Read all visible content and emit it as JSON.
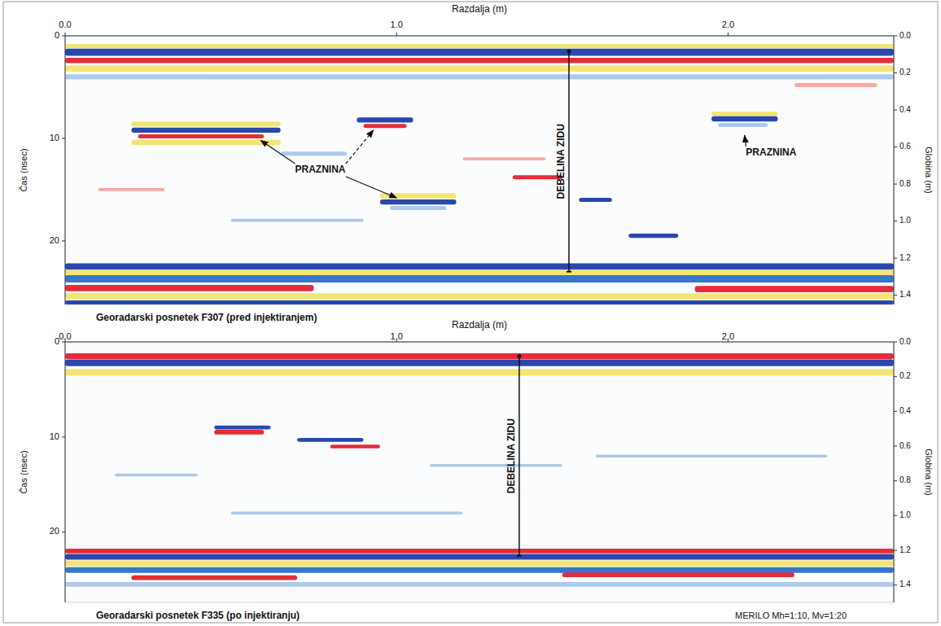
{
  "chart_data": [
    {
      "type": "radargram",
      "title": "Georadarski posnetek F307 (pred injektiranjem)",
      "x_label": "Razdalja (m)",
      "y_label": "Čas (nsec)",
      "y2_label": "Globina (m)",
      "xlim": [
        0,
        2.5
      ],
      "xticks": [
        {
          "value": 0,
          "label": "0.0"
        },
        {
          "value": 1,
          "label": "1.0"
        },
        {
          "value": 2,
          "label": "2.0"
        }
      ],
      "ylim": [
        0,
        26.2
      ],
      "yticks": [
        0,
        10,
        20
      ],
      "y2lim": [
        0,
        1.45
      ],
      "y2ticks": [
        {
          "value": 0,
          "label": "0.0"
        },
        {
          "value": 0.2,
          "label": "0.2"
        },
        {
          "value": 0.4,
          "label": "0.4"
        },
        {
          "value": 0.6,
          "label": "0.6"
        },
        {
          "value": 0.8,
          "label": "0.8"
        },
        {
          "value": 1,
          "label": "1.0"
        },
        {
          "value": 1.2,
          "label": "1.2"
        },
        {
          "value": 1.4,
          "label": "1.4"
        }
      ],
      "reflectors": [
        {
          "x0": 0,
          "x1": 2.5,
          "t": 1.0,
          "dt": 0.4,
          "color": "#f3e36a"
        },
        {
          "x0": 0,
          "x1": 2.5,
          "t": 1.6,
          "dt": 0.7,
          "color": "#1e3ea8"
        },
        {
          "x0": 0,
          "x1": 2.5,
          "t": 2.4,
          "dt": 0.5,
          "color": "#e3222b"
        },
        {
          "x0": 0,
          "x1": 2.5,
          "t": 3.2,
          "dt": 0.6,
          "color": "#f3e36a"
        },
        {
          "x0": 0,
          "x1": 2.5,
          "t": 4.0,
          "dt": 0.5,
          "color": "#a9c6ea"
        },
        {
          "x0": 0.2,
          "x1": 0.65,
          "t": 8.6,
          "dt": 0.5,
          "color": "#f3e36a"
        },
        {
          "x0": 0.2,
          "x1": 0.65,
          "t": 9.2,
          "dt": 0.5,
          "color": "#1e3ea8"
        },
        {
          "x0": 0.22,
          "x1": 0.6,
          "t": 9.8,
          "dt": 0.4,
          "color": "#e3222b"
        },
        {
          "x0": 0.2,
          "x1": 0.65,
          "t": 10.4,
          "dt": 0.5,
          "color": "#f3e36a"
        },
        {
          "x0": 0.88,
          "x1": 1.05,
          "t": 8.2,
          "dt": 0.5,
          "color": "#1e3ea8"
        },
        {
          "x0": 0.9,
          "x1": 1.03,
          "t": 8.8,
          "dt": 0.4,
          "color": "#e3222b"
        },
        {
          "x0": 0.95,
          "x1": 1.18,
          "t": 15.6,
          "dt": 0.5,
          "color": "#f3e36a"
        },
        {
          "x0": 0.95,
          "x1": 1.18,
          "t": 16.2,
          "dt": 0.5,
          "color": "#1e3ea8"
        },
        {
          "x0": 0.98,
          "x1": 1.15,
          "t": 16.8,
          "dt": 0.4,
          "color": "#a9c6ea"
        },
        {
          "x0": 1.95,
          "x1": 2.15,
          "t": 7.6,
          "dt": 0.4,
          "color": "#f3e36a"
        },
        {
          "x0": 1.95,
          "x1": 2.15,
          "t": 8.1,
          "dt": 0.5,
          "color": "#1e3ea8"
        },
        {
          "x0": 1.97,
          "x1": 2.12,
          "t": 8.7,
          "dt": 0.4,
          "color": "#a9c6ea"
        },
        {
          "x0": 0.65,
          "x1": 0.85,
          "t": 11.5,
          "dt": 0.4,
          "color": "#a9c6ea"
        },
        {
          "x0": 1.35,
          "x1": 1.5,
          "t": 13.8,
          "dt": 0.4,
          "color": "#e3222b"
        },
        {
          "x0": 1.7,
          "x1": 1.85,
          "t": 19.5,
          "dt": 0.4,
          "color": "#1e3ea8"
        },
        {
          "x0": 1.55,
          "x1": 1.65,
          "t": 16.0,
          "dt": 0.4,
          "color": "#1e3ea8"
        },
        {
          "x0": 0.1,
          "x1": 0.3,
          "t": 15.0,
          "dt": 0.3,
          "color": "#f4a6a0"
        },
        {
          "x0": 1.2,
          "x1": 1.45,
          "t": 12.0,
          "dt": 0.3,
          "color": "#f4a6a0"
        },
        {
          "x0": 2.2,
          "x1": 2.45,
          "t": 4.8,
          "dt": 0.4,
          "color": "#f4a6a0"
        },
        {
          "x0": 0.5,
          "x1": 0.9,
          "t": 18.0,
          "dt": 0.3,
          "color": "#a9c6ea"
        },
        {
          "x0": 0,
          "x1": 2.5,
          "t": 22.5,
          "dt": 0.6,
          "color": "#1e3ea8"
        },
        {
          "x0": 0,
          "x1": 2.5,
          "t": 23.1,
          "dt": 0.5,
          "color": "#f3e36a"
        },
        {
          "x0": 0,
          "x1": 2.5,
          "t": 23.7,
          "dt": 0.7,
          "color": "#2a6fc9"
        },
        {
          "x0": 0,
          "x1": 0.75,
          "t": 24.6,
          "dt": 0.6,
          "color": "#e3222b"
        },
        {
          "x0": 1.9,
          "x1": 2.5,
          "t": 24.7,
          "dt": 0.6,
          "color": "#e3222b"
        },
        {
          "x0": 0,
          "x1": 2.5,
          "t": 25.4,
          "dt": 0.6,
          "color": "#f3e36a"
        },
        {
          "x0": 0,
          "x1": 2.5,
          "t": 26.0,
          "dt": 0.4,
          "color": "#1e3ea8"
        }
      ],
      "thickness_line": {
        "text": "DEBELINA ZIDU",
        "x": 1.52,
        "t0": 1.5,
        "t1": 23.0
      },
      "annotations": [
        {
          "text": "PRAZNINA",
          "x": 0.77,
          "t": 13.1,
          "arrows": [
            {
              "x": 0.59,
              "t": 10.2
            },
            {
              "x": 1.0,
              "t": 15.8
            },
            {
              "x": 0.93,
              "t": 9.2
            }
          ]
        },
        {
          "text": "PRAZNINA",
          "x": 2.13,
          "t": 11.4,
          "arrows": [
            {
              "x": 2.05,
              "t": 9.7
            }
          ]
        }
      ]
    },
    {
      "type": "radargram",
      "title": "Georadarski posnetek F335 (po injektiranju)",
      "x_label": "Razdalja (m)",
      "y_label": "Čas (nsec)",
      "y2_label": "Globina (m)",
      "note": "MERILO Mh=1:10, Mv=1:20",
      "xlim": [
        0,
        2.5
      ],
      "xticks": [
        {
          "value": 0,
          "label": "0.0"
        },
        {
          "value": 1,
          "label": "1.0"
        },
        {
          "value": 2,
          "label": "2.0"
        }
      ],
      "ylim": [
        0,
        27.4
      ],
      "yticks": [
        0,
        10,
        20
      ],
      "y2lim": [
        0,
        1.5
      ],
      "y2ticks": [
        {
          "value": 0,
          "label": "0.0"
        },
        {
          "value": 0.2,
          "label": "0.2"
        },
        {
          "value": 0.4,
          "label": "0.4"
        },
        {
          "value": 0.6,
          "label": "0.6"
        },
        {
          "value": 0.8,
          "label": "0.8"
        },
        {
          "value": 1,
          "label": "1.0"
        },
        {
          "value": 1.2,
          "label": "1.2"
        },
        {
          "value": 1.4,
          "label": "1.4"
        }
      ],
      "reflectors": [
        {
          "x0": 0,
          "x1": 2.5,
          "t": 1.5,
          "dt": 0.6,
          "color": "#e3222b"
        },
        {
          "x0": 0,
          "x1": 2.5,
          "t": 2.2,
          "dt": 0.7,
          "color": "#1e3ea8"
        },
        {
          "x0": 0,
          "x1": 2.5,
          "t": 3.2,
          "dt": 0.7,
          "color": "#f3e36a"
        },
        {
          "x0": 0.45,
          "x1": 0.62,
          "t": 9.0,
          "dt": 0.4,
          "color": "#1e3ea8"
        },
        {
          "x0": 0.45,
          "x1": 0.6,
          "t": 9.5,
          "dt": 0.5,
          "color": "#e3222b"
        },
        {
          "x0": 0.7,
          "x1": 0.9,
          "t": 10.3,
          "dt": 0.4,
          "color": "#1e3ea8"
        },
        {
          "x0": 0.8,
          "x1": 0.95,
          "t": 11.0,
          "dt": 0.4,
          "color": "#e3222b"
        },
        {
          "x0": 0.15,
          "x1": 0.4,
          "t": 14.0,
          "dt": 0.3,
          "color": "#a9c6ea"
        },
        {
          "x0": 1.1,
          "x1": 1.5,
          "t": 13.0,
          "dt": 0.3,
          "color": "#a9c6ea"
        },
        {
          "x0": 1.6,
          "x1": 2.3,
          "t": 12.0,
          "dt": 0.3,
          "color": "#a9c6ea"
        },
        {
          "x0": 0.5,
          "x1": 1.2,
          "t": 18.0,
          "dt": 0.3,
          "color": "#a9c6ea"
        },
        {
          "x0": 0,
          "x1": 2.5,
          "t": 22.0,
          "dt": 0.5,
          "color": "#e3222b"
        },
        {
          "x0": 0,
          "x1": 2.5,
          "t": 22.6,
          "dt": 0.6,
          "color": "#1e3ea8"
        },
        {
          "x0": 0,
          "x1": 2.5,
          "t": 23.3,
          "dt": 0.6,
          "color": "#f3e36a"
        },
        {
          "x0": 0,
          "x1": 2.5,
          "t": 24.0,
          "dt": 0.6,
          "color": "#2a6fc9"
        },
        {
          "x0": 0.2,
          "x1": 0.7,
          "t": 24.8,
          "dt": 0.5,
          "color": "#e3222b"
        },
        {
          "x0": 1.5,
          "x1": 2.2,
          "t": 24.5,
          "dt": 0.5,
          "color": "#e3222b"
        },
        {
          "x0": 0,
          "x1": 2.5,
          "t": 25.5,
          "dt": 0.5,
          "color": "#a9c6ea"
        }
      ],
      "thickness_line": {
        "text": "DEBELINA ZIDU",
        "x": 1.37,
        "t0": 1.5,
        "t1": 22.5
      },
      "annotations": []
    }
  ]
}
